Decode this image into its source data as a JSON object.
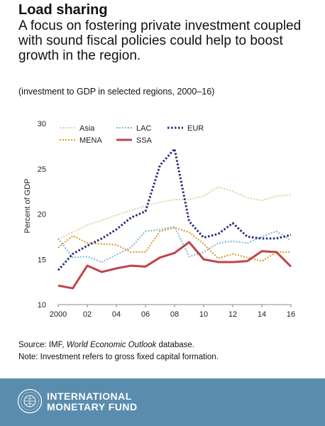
{
  "header": {
    "title": "Load sharing",
    "subtitle": "A focus on fostering private investment coupled with sound fiscal policies could help to boost growth in the region.",
    "note": "(investment to GDP in selected regions, 2000–16)"
  },
  "source": {
    "line1_prefix": "Source: IMF, ",
    "line1_italic": "World Economic Outlook",
    "line1_suffix": " database.",
    "line2": "Note: Investment refers to gross fixed capital formation."
  },
  "footer": {
    "org_line1": "INTERNATIONAL",
    "org_line2": "MONETARY FUND",
    "seal_icon": "imf-seal-icon"
  },
  "chart_data": {
    "type": "line",
    "ylabel": "Percent of GDP",
    "xlabel": "",
    "ylim": [
      10,
      30
    ],
    "xlim": [
      2000,
      2016
    ],
    "yticks": [
      10,
      15,
      20,
      25,
      30
    ],
    "xticks": [
      2000,
      2002,
      2004,
      2006,
      2008,
      2010,
      2012,
      2014,
      2016
    ],
    "xtick_labels": [
      "2000",
      "02",
      "04",
      "06",
      "08",
      "10",
      "12",
      "14",
      "16"
    ],
    "grid": false,
    "legend_position": "top",
    "x": [
      2000,
      2001,
      2002,
      2003,
      2004,
      2005,
      2006,
      2007,
      2008,
      2009,
      2010,
      2011,
      2012,
      2013,
      2014,
      2015,
      2016
    ],
    "series": [
      {
        "name": "Asia",
        "color": "#e3cfa5",
        "style": "dotted",
        "width": 2,
        "values": [
          17.2,
          18.0,
          18.8,
          19.3,
          19.9,
          20.4,
          20.9,
          21.3,
          21.6,
          21.6,
          22.0,
          23.0,
          22.5,
          21.8,
          21.5,
          22.0,
          22.1
        ]
      },
      {
        "name": "LAC",
        "color": "#7fb7de",
        "style": "dotted",
        "width": 2,
        "values": [
          17.3,
          15.2,
          15.3,
          14.7,
          15.5,
          16.3,
          18.1,
          18.3,
          18.6,
          15.3,
          15.8,
          16.8,
          17.0,
          16.8,
          17.5,
          18.1,
          17.1
        ]
      },
      {
        "name": "EUR",
        "color": "#2c2c7c",
        "style": "dotted",
        "width": 3,
        "values": [
          13.8,
          15.6,
          16.5,
          17.3,
          18.3,
          19.6,
          20.3,
          25.4,
          27.2,
          19.2,
          17.4,
          17.8,
          19.0,
          17.5,
          17.3,
          17.3,
          17.7
        ]
      },
      {
        "name": "MENA",
        "color": "#e0961a",
        "style": "dotted",
        "width": 2,
        "values": [
          16.3,
          17.6,
          16.8,
          16.7,
          16.6,
          15.8,
          15.8,
          18.1,
          18.5,
          18.0,
          16.7,
          15.1,
          15.6,
          15.2,
          14.8,
          15.8,
          15.8
        ]
      },
      {
        "name": "SSA",
        "color": "#c0444a",
        "style": "solid",
        "width": 3,
        "values": [
          12.1,
          11.8,
          14.3,
          13.6,
          14.0,
          14.3,
          14.2,
          15.2,
          15.7,
          16.9,
          15.0,
          14.7,
          14.7,
          14.8,
          15.9,
          15.8,
          14.2
        ]
      }
    ]
  }
}
